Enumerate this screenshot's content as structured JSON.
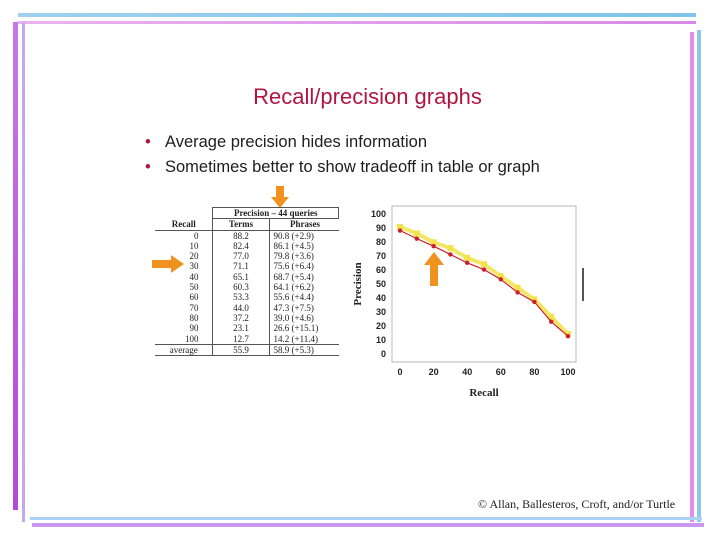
{
  "slide": {
    "title": "Recall/precision graphs",
    "bullets": [
      "Average precision hides information",
      "Sometimes better to show tradeoff in table or graph"
    ],
    "credit": "© Allan, Ballesteros, Croft, and/or Turtle"
  },
  "table": {
    "group_header": "Precision – 44 queries",
    "headers": [
      "Recall",
      "Terms",
      "Phrases"
    ],
    "rows": [
      [
        "0",
        "88.2",
        "90.8  (+2.9)"
      ],
      [
        "10",
        "82.4",
        "86.1  (+4.5)"
      ],
      [
        "20",
        "77.0",
        "79.8  (+3.6)"
      ],
      [
        "30",
        "71.1",
        "75.6  (+6.4)"
      ],
      [
        "40",
        "65.1",
        "68.7  (+5.4)"
      ],
      [
        "50",
        "60.3",
        "64.1  (+6.2)"
      ],
      [
        "60",
        "53.3",
        "55.6  (+4.4)"
      ],
      [
        "70",
        "44.0",
        "47.3  (+7.5)"
      ],
      [
        "80",
        "37.2",
        "39.0  (+4.6)"
      ],
      [
        "90",
        "23.1",
        "26.6  (+15.1)"
      ],
      [
        "100",
        "12.7",
        "14.2  (+11.4)"
      ]
    ],
    "average": [
      "average",
      "55.9",
      "58.9  (+5.3)"
    ]
  },
  "colors": {
    "title": "#b01642",
    "arrow": "#f0921e",
    "series_terms": "#cc1f2c",
    "series_phrases": "#f2e34a"
  },
  "chart_data": {
    "type": "line",
    "xlabel": "Recall",
    "ylabel": "Precision",
    "xlim": [
      0,
      100
    ],
    "ylim": [
      0,
      100
    ],
    "x_ticks": [
      0,
      20,
      40,
      60,
      80,
      100
    ],
    "y_ticks": [
      0,
      10,
      20,
      30,
      40,
      50,
      60,
      70,
      80,
      90,
      100
    ],
    "x": [
      0,
      10,
      20,
      30,
      40,
      50,
      60,
      70,
      80,
      90,
      100
    ],
    "series": [
      {
        "values": [
          88.2,
          82.4,
          77.0,
          71.1,
          65.1,
          60.3,
          53.3,
          44.0,
          37.2,
          23.1,
          12.7
        ]
      },
      {
        "values": [
          90.8,
          86.1,
          79.8,
          75.6,
          68.7,
          64.1,
          55.6,
          47.3,
          39.0,
          26.6,
          14.2
        ]
      }
    ]
  }
}
